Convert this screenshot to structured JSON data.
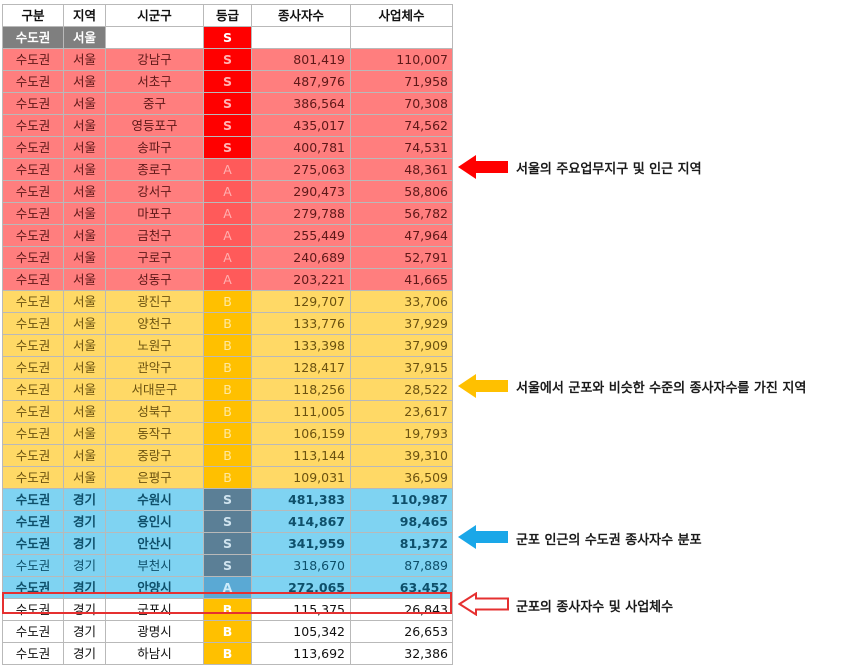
{
  "columns": [
    "구분",
    "지역",
    "시군구",
    "등급",
    "종사자수",
    "사업체수"
  ],
  "rows": [
    {
      "group": "k",
      "bold": false,
      "cells": [
        "수도권",
        "서울",
        "",
        "S",
        "",
        ""
      ],
      "grade_class": "gSk"
    },
    {
      "group": "s",
      "bold": false,
      "cells": [
        "수도권",
        "서울",
        "강남구",
        "S",
        "801,419",
        "110,007"
      ],
      "grade_class": "gS"
    },
    {
      "group": "s",
      "bold": false,
      "cells": [
        "수도권",
        "서울",
        "서초구",
        "S",
        "487,976",
        "71,958"
      ],
      "grade_class": "gS"
    },
    {
      "group": "s",
      "bold": false,
      "cells": [
        "수도권",
        "서울",
        "중구",
        "S",
        "386,564",
        "70,308"
      ],
      "grade_class": "gS"
    },
    {
      "group": "s",
      "bold": false,
      "cells": [
        "수도권",
        "서울",
        "영등포구",
        "S",
        "435,017",
        "74,562"
      ],
      "grade_class": "gS"
    },
    {
      "group": "s",
      "bold": false,
      "cells": [
        "수도권",
        "서울",
        "송파구",
        "S",
        "400,781",
        "74,531"
      ],
      "grade_class": "gS"
    },
    {
      "group": "s",
      "bold": false,
      "cells": [
        "수도권",
        "서울",
        "종로구",
        "A",
        "275,063",
        "48,361"
      ],
      "grade_class": "gA"
    },
    {
      "group": "s",
      "bold": false,
      "cells": [
        "수도권",
        "서울",
        "강서구",
        "A",
        "290,473",
        "58,806"
      ],
      "grade_class": "gA"
    },
    {
      "group": "s",
      "bold": false,
      "cells": [
        "수도권",
        "서울",
        "마포구",
        "A",
        "279,788",
        "56,782"
      ],
      "grade_class": "gA"
    },
    {
      "group": "s",
      "bold": false,
      "cells": [
        "수도권",
        "서울",
        "금천구",
        "A",
        "255,449",
        "47,964"
      ],
      "grade_class": "gA"
    },
    {
      "group": "s",
      "bold": false,
      "cells": [
        "수도권",
        "서울",
        "구로구",
        "A",
        "240,689",
        "52,791"
      ],
      "grade_class": "gA"
    },
    {
      "group": "s",
      "bold": false,
      "cells": [
        "수도권",
        "서울",
        "성동구",
        "A",
        "203,221",
        "41,665"
      ],
      "grade_class": "gA"
    },
    {
      "group": "b",
      "bold": false,
      "cells": [
        "수도권",
        "서울",
        "광진구",
        "B",
        "129,707",
        "33,706"
      ],
      "grade_class": "gB"
    },
    {
      "group": "b",
      "bold": false,
      "cells": [
        "수도권",
        "서울",
        "양천구",
        "B",
        "133,776",
        "37,929"
      ],
      "grade_class": "gB"
    },
    {
      "group": "b",
      "bold": false,
      "cells": [
        "수도권",
        "서울",
        "노원구",
        "B",
        "133,398",
        "37,909"
      ],
      "grade_class": "gB"
    },
    {
      "group": "b",
      "bold": false,
      "cells": [
        "수도권",
        "서울",
        "관악구",
        "B",
        "128,417",
        "37,915"
      ],
      "grade_class": "gB"
    },
    {
      "group": "b",
      "bold": false,
      "cells": [
        "수도권",
        "서울",
        "서대문구",
        "B",
        "118,256",
        "28,522"
      ],
      "grade_class": "gB"
    },
    {
      "group": "b",
      "bold": false,
      "cells": [
        "수도권",
        "서울",
        "성북구",
        "B",
        "111,005",
        "23,617"
      ],
      "grade_class": "gB"
    },
    {
      "group": "b",
      "bold": false,
      "cells": [
        "수도권",
        "서울",
        "동작구",
        "B",
        "106,159",
        "19,793"
      ],
      "grade_class": "gB"
    },
    {
      "group": "b",
      "bold": false,
      "cells": [
        "수도권",
        "서울",
        "중랑구",
        "B",
        "113,144",
        "39,310"
      ],
      "grade_class": "gB"
    },
    {
      "group": "b",
      "bold": false,
      "cells": [
        "수도권",
        "서울",
        "은평구",
        "B",
        "109,031",
        "36,509"
      ],
      "grade_class": "gB"
    },
    {
      "group": "g",
      "bold": true,
      "cells": [
        "수도권",
        "경기",
        "수원시",
        "S",
        "481,383",
        "110,987"
      ],
      "grade_class": "gSg"
    },
    {
      "group": "g",
      "bold": true,
      "cells": [
        "수도권",
        "경기",
        "용인시",
        "S",
        "414,867",
        "98,465"
      ],
      "grade_class": "gSg"
    },
    {
      "group": "g",
      "bold": true,
      "cells": [
        "수도권",
        "경기",
        "안산시",
        "S",
        "341,959",
        "81,372"
      ],
      "grade_class": "gSg"
    },
    {
      "group": "g",
      "bold": false,
      "cells": [
        "수도권",
        "경기",
        "부천시",
        "S",
        "318,670",
        "87,889"
      ],
      "grade_class": "gSg"
    },
    {
      "group": "g",
      "bold": true,
      "cells": [
        "수도권",
        "경기",
        "안양시",
        "A",
        "272,065",
        "63,452"
      ],
      "grade_class": "gAg"
    },
    {
      "group": "w",
      "bold": false,
      "cells": [
        "수도권",
        "경기",
        "군포시",
        "B",
        "115,375",
        "26,843"
      ],
      "grade_class": "gBw"
    },
    {
      "group": "w",
      "bold": false,
      "cells": [
        "수도권",
        "경기",
        "광명시",
        "B",
        "105,342",
        "26,653"
      ],
      "grade_class": "gBw"
    },
    {
      "group": "w",
      "bold": false,
      "cells": [
        "수도권",
        "경기",
        "하남시",
        "B",
        "113,692",
        "32,386"
      ],
      "grade_class": "gBw"
    }
  ],
  "annotations": [
    {
      "text": "서울의 주요업무지구 및 인근 지역",
      "color": "#ff0000",
      "style": "filled"
    },
    {
      "text": "서울에서 군포와 비슷한 수준의 종사자수를 가진 지역",
      "color": "#ffc000",
      "style": "filled"
    },
    {
      "text": "군포 인근의 수도권 종사자수 분포",
      "color": "#1aa7e8",
      "style": "filled"
    },
    {
      "text": "군포의 종사자수 및 사업체수",
      "color": "#e53030",
      "style": "outline"
    }
  ]
}
